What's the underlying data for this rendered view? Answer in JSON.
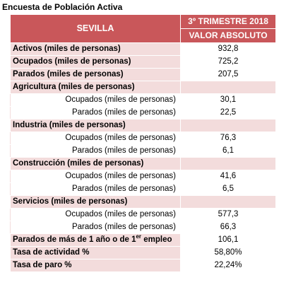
{
  "page_title": "Encuesta de Población Activa",
  "header": {
    "region": "SEVILLA",
    "period": "3º TRIMESTRE 2018",
    "measure": "VALOR ABSOLUTO"
  },
  "rows": [
    {
      "label": "Activos (miles de personas)",
      "value": "932,8"
    },
    {
      "label": "Ocupados (miles de personas)",
      "value": "725,2"
    },
    {
      "label": "Parados (miles de personas)",
      "value": "207,5"
    },
    {
      "label": "Agricultura (miles de personas)",
      "value": ""
    },
    {
      "label": "Ocupados (miles de personas)",
      "value": "30,1"
    },
    {
      "label": "Parados (miles de personas)",
      "value": "22,5"
    },
    {
      "label": "Industria (miles de personas)",
      "value": ""
    },
    {
      "label": "Ocupados (miles de personas)",
      "value": "76,3"
    },
    {
      "label": "Parados (miles de personas)",
      "value": "6,1"
    },
    {
      "label": "Construcción (miles de personas)",
      "value": ""
    },
    {
      "label": "Ocupados (miles de personas)",
      "value": "41,6"
    },
    {
      "label": "Parados (miles de personas)",
      "value": "6,5"
    },
    {
      "label": "Servicios (miles de personas)",
      "value": ""
    },
    {
      "label": "Ocupados (miles de personas)",
      "value": "577,3"
    },
    {
      "label": "Parados (miles de personas)",
      "value": "66,3"
    },
    {
      "label_pre": "Parados de más de 1 año o de 1",
      "label_sup": "er",
      "label_post": " empleo",
      "value": "106,1"
    },
    {
      "label": "Tasa de actividad %",
      "value": "58,80%"
    },
    {
      "label": "Tasa de paro %",
      "value": "22,24%"
    }
  ]
}
